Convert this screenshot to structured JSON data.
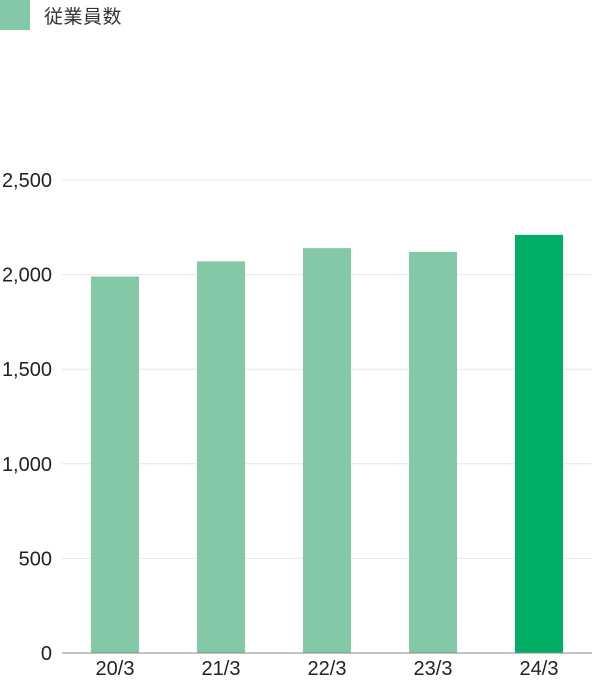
{
  "chart_data": {
    "type": "bar",
    "legend": {
      "label": "従業員数",
      "position": "top-left"
    },
    "categories": [
      "20/3",
      "21/3",
      "22/3",
      "23/3",
      "24/3"
    ],
    "series": [
      {
        "name": "従業員数",
        "values": [
          1990,
          2070,
          2140,
          2120,
          2210
        ]
      }
    ],
    "ylim": [
      0,
      2500
    ],
    "y_ticks": [
      0,
      500,
      1000,
      1500,
      2000,
      2500
    ],
    "y_tick_labels": [
      "0",
      "500",
      "1,000",
      "1,500",
      "2,000",
      "2,500"
    ],
    "grid": true,
    "colors": {
      "bar": "#84c9a7",
      "highlight_bar": "#00af66",
      "gridline": "#e6e6e6",
      "axis": "#888888"
    },
    "highlight_index": 4
  }
}
